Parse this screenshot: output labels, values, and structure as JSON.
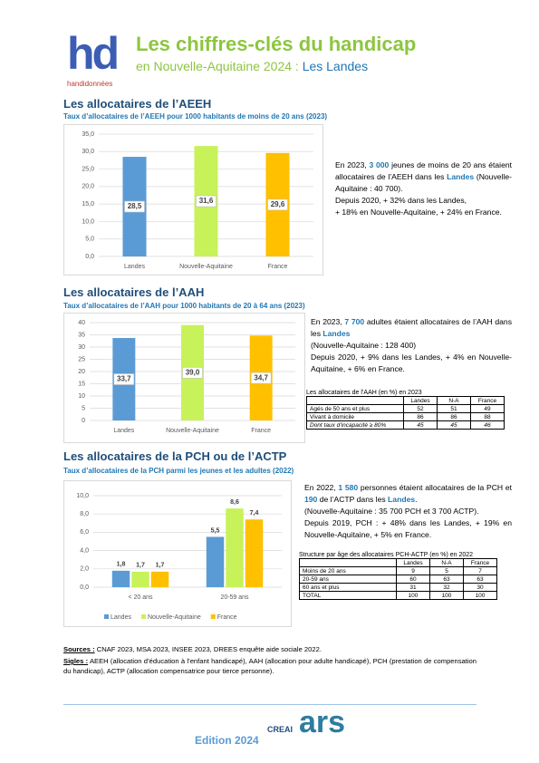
{
  "header": {
    "logo": "hd",
    "logo_caption": "handidonnées",
    "title": "Les chiffres-clés du handicap",
    "subtitle": "en Nouvelle-Aquitaine 2024 : ",
    "subtitle_place": "Les Landes"
  },
  "sections": [
    {
      "title": "Les allocataires de l’AEEH",
      "chart": {
        "type": "bar",
        "title": "Taux d’allocataires de l’AEEH pour 1000 habitants de moins de 20 ans (2023)",
        "categories": [
          "Landes",
          "Nouvelle-Aquitaine",
          "France"
        ],
        "values": [
          28.5,
          31.6,
          29.6
        ],
        "value_labels": [
          "28,5",
          "31,6",
          "29,6"
        ],
        "colors": [
          "#5b9bd5",
          "#c8f25a",
          "#ffc000"
        ],
        "ylim": [
          0,
          35
        ],
        "yticks": [
          {
            "value": 0,
            "label": "0,0"
          },
          {
            "value": 5,
            "label": "5,0"
          },
          {
            "value": 10,
            "label": "10,0"
          },
          {
            "value": 15,
            "label": "15,0"
          },
          {
            "value": 20,
            "label": "20,0"
          },
          {
            "value": 25,
            "label": "25,0"
          },
          {
            "value": 30,
            "label": "30,0"
          },
          {
            "value": 35,
            "label": "35,0"
          }
        ],
        "grid": true
      },
      "text": [
        [
          "En 2023, ",
          "3 000",
          " jeunes de moins de 20 ans étaient allocataires de l’AEEH dans les ",
          "Landes",
          " (Nouvelle-Aquitaine : 40 700)."
        ],
        [
          "Depuis 2020, + 32% dans les Landes,"
        ],
        [
          "+ 18% en Nouvelle-Aquitaine, + 24% en France."
        ]
      ]
    },
    {
      "title": "Les allocataires de l’AAH",
      "chart": {
        "type": "bar",
        "title": "Taux d’allocataires de l’AAH pour 1000 habitants de 20 à 64 ans (2023)",
        "categories": [
          "Landes",
          "Nouvelle-Aquitaine",
          "France"
        ],
        "values": [
          33.7,
          39.0,
          34.7
        ],
        "value_labels": [
          "33,7",
          "39,0",
          "34,7"
        ],
        "colors": [
          "#5b9bd5",
          "#c8f25a",
          "#ffc000"
        ],
        "ylim": [
          0,
          40
        ],
        "yticks": [
          0,
          5,
          10,
          15,
          20,
          25,
          30,
          35,
          40
        ],
        "grid": true
      },
      "text": [
        [
          "En 2023, ",
          "7 700",
          " adultes étaient allocataires de l’AAH dans les ",
          "Landes"
        ],
        [
          "(Nouvelle-Aquitaine : 128 400)"
        ],
        [
          "Depuis 2020, + 9% dans les Landes, + 4% en Nouvelle-Aquitaine, + 6% en France."
        ]
      ],
      "table": {
        "title": "Les allocataires de l’AAH (en %) en 2023",
        "columns": [
          "Landes",
          "N-A",
          "France"
        ],
        "rows": [
          [
            "Agés de 50 ans et plus",
            52,
            51,
            49
          ],
          [
            "Vivant à domicile",
            86,
            86,
            88
          ],
          [
            "Dont taux d’incapacité ≥ 80%",
            45,
            45,
            46
          ]
        ]
      }
    },
    {
      "title": "Les allocataires de la PCH ou de l’ACTP",
      "chart": {
        "type": "bar",
        "title": "Taux d’allocataires de la PCH parmi les jeunes et les adultes (2022)",
        "categories": [
          "< 20 ans",
          "20-59 ans"
        ],
        "series": [
          {
            "name": "Landes",
            "color": "#5b9bd5",
            "values": [
              1.8,
              5.5
            ],
            "value_labels": [
              "1,8",
              "5,5"
            ]
          },
          {
            "name": "Nouvelle-Aquitaine",
            "color": "#c8f25a",
            "values": [
              1.7,
              8.6
            ],
            "value_labels": [
              "1,7",
              "8,6"
            ]
          },
          {
            "name": "France",
            "color": "#ffc000",
            "values": [
              1.7,
              7.4
            ],
            "value_labels": [
              "1,7",
              "7,4"
            ]
          }
        ],
        "ylim": [
          0,
          10
        ],
        "yticks": [
          {
            "value": 0,
            "label": "0,0"
          },
          {
            "value": 2,
            "label": "2,0"
          },
          {
            "value": 4,
            "label": "4,0"
          },
          {
            "value": 6,
            "label": "6,0"
          },
          {
            "value": 8,
            "label": "8,0"
          },
          {
            "value": 10,
            "label": "10,0"
          }
        ],
        "grid": true,
        "legend": "bottom"
      },
      "text": [
        [
          "En 2022, ",
          "1 580",
          " personnes étaient allocataires de la PCH et ",
          "190",
          " de l’ACTP dans les ",
          "Landes",
          "."
        ],
        [
          "(Nouvelle-Aquitaine : 35 700 PCH et 3 700 ACTP)."
        ],
        [
          "Depuis 2019, PCH : + 48% dans les Landes, + 19% en Nouvelle-Aquitaine, + 5% en France."
        ]
      ],
      "table": {
        "title": "Structure par âge des allocataires PCH-ACTP (en %) en 2022",
        "columns": [
          "Landes",
          "N-A",
          "France"
        ],
        "rows": [
          [
            "Moins de 20 ans",
            9,
            5,
            7
          ],
          [
            "20-59 ans",
            60,
            63,
            63
          ],
          [
            "60 ans et plus",
            31,
            32,
            30
          ],
          [
            "TOTAL",
            100,
            100,
            100
          ]
        ]
      }
    }
  ],
  "footer": {
    "sources_label": "Sources :",
    "sources": " CNAF 2023, MSA 2023, INSEE 2023, DREES enquête aide sociale 2022.",
    "sigles_label": "Sigles :",
    "sigles": " AEEH (allocation d’éducation à l’enfant handicapé), AAH (allocation pour adulte handicapé), PCH (prestation de compensation du handicap), ACTP (allocation compensatrice pour tierce personne).",
    "edition": "Edition 2024",
    "partners": [
      "CREAI",
      "ars"
    ]
  }
}
